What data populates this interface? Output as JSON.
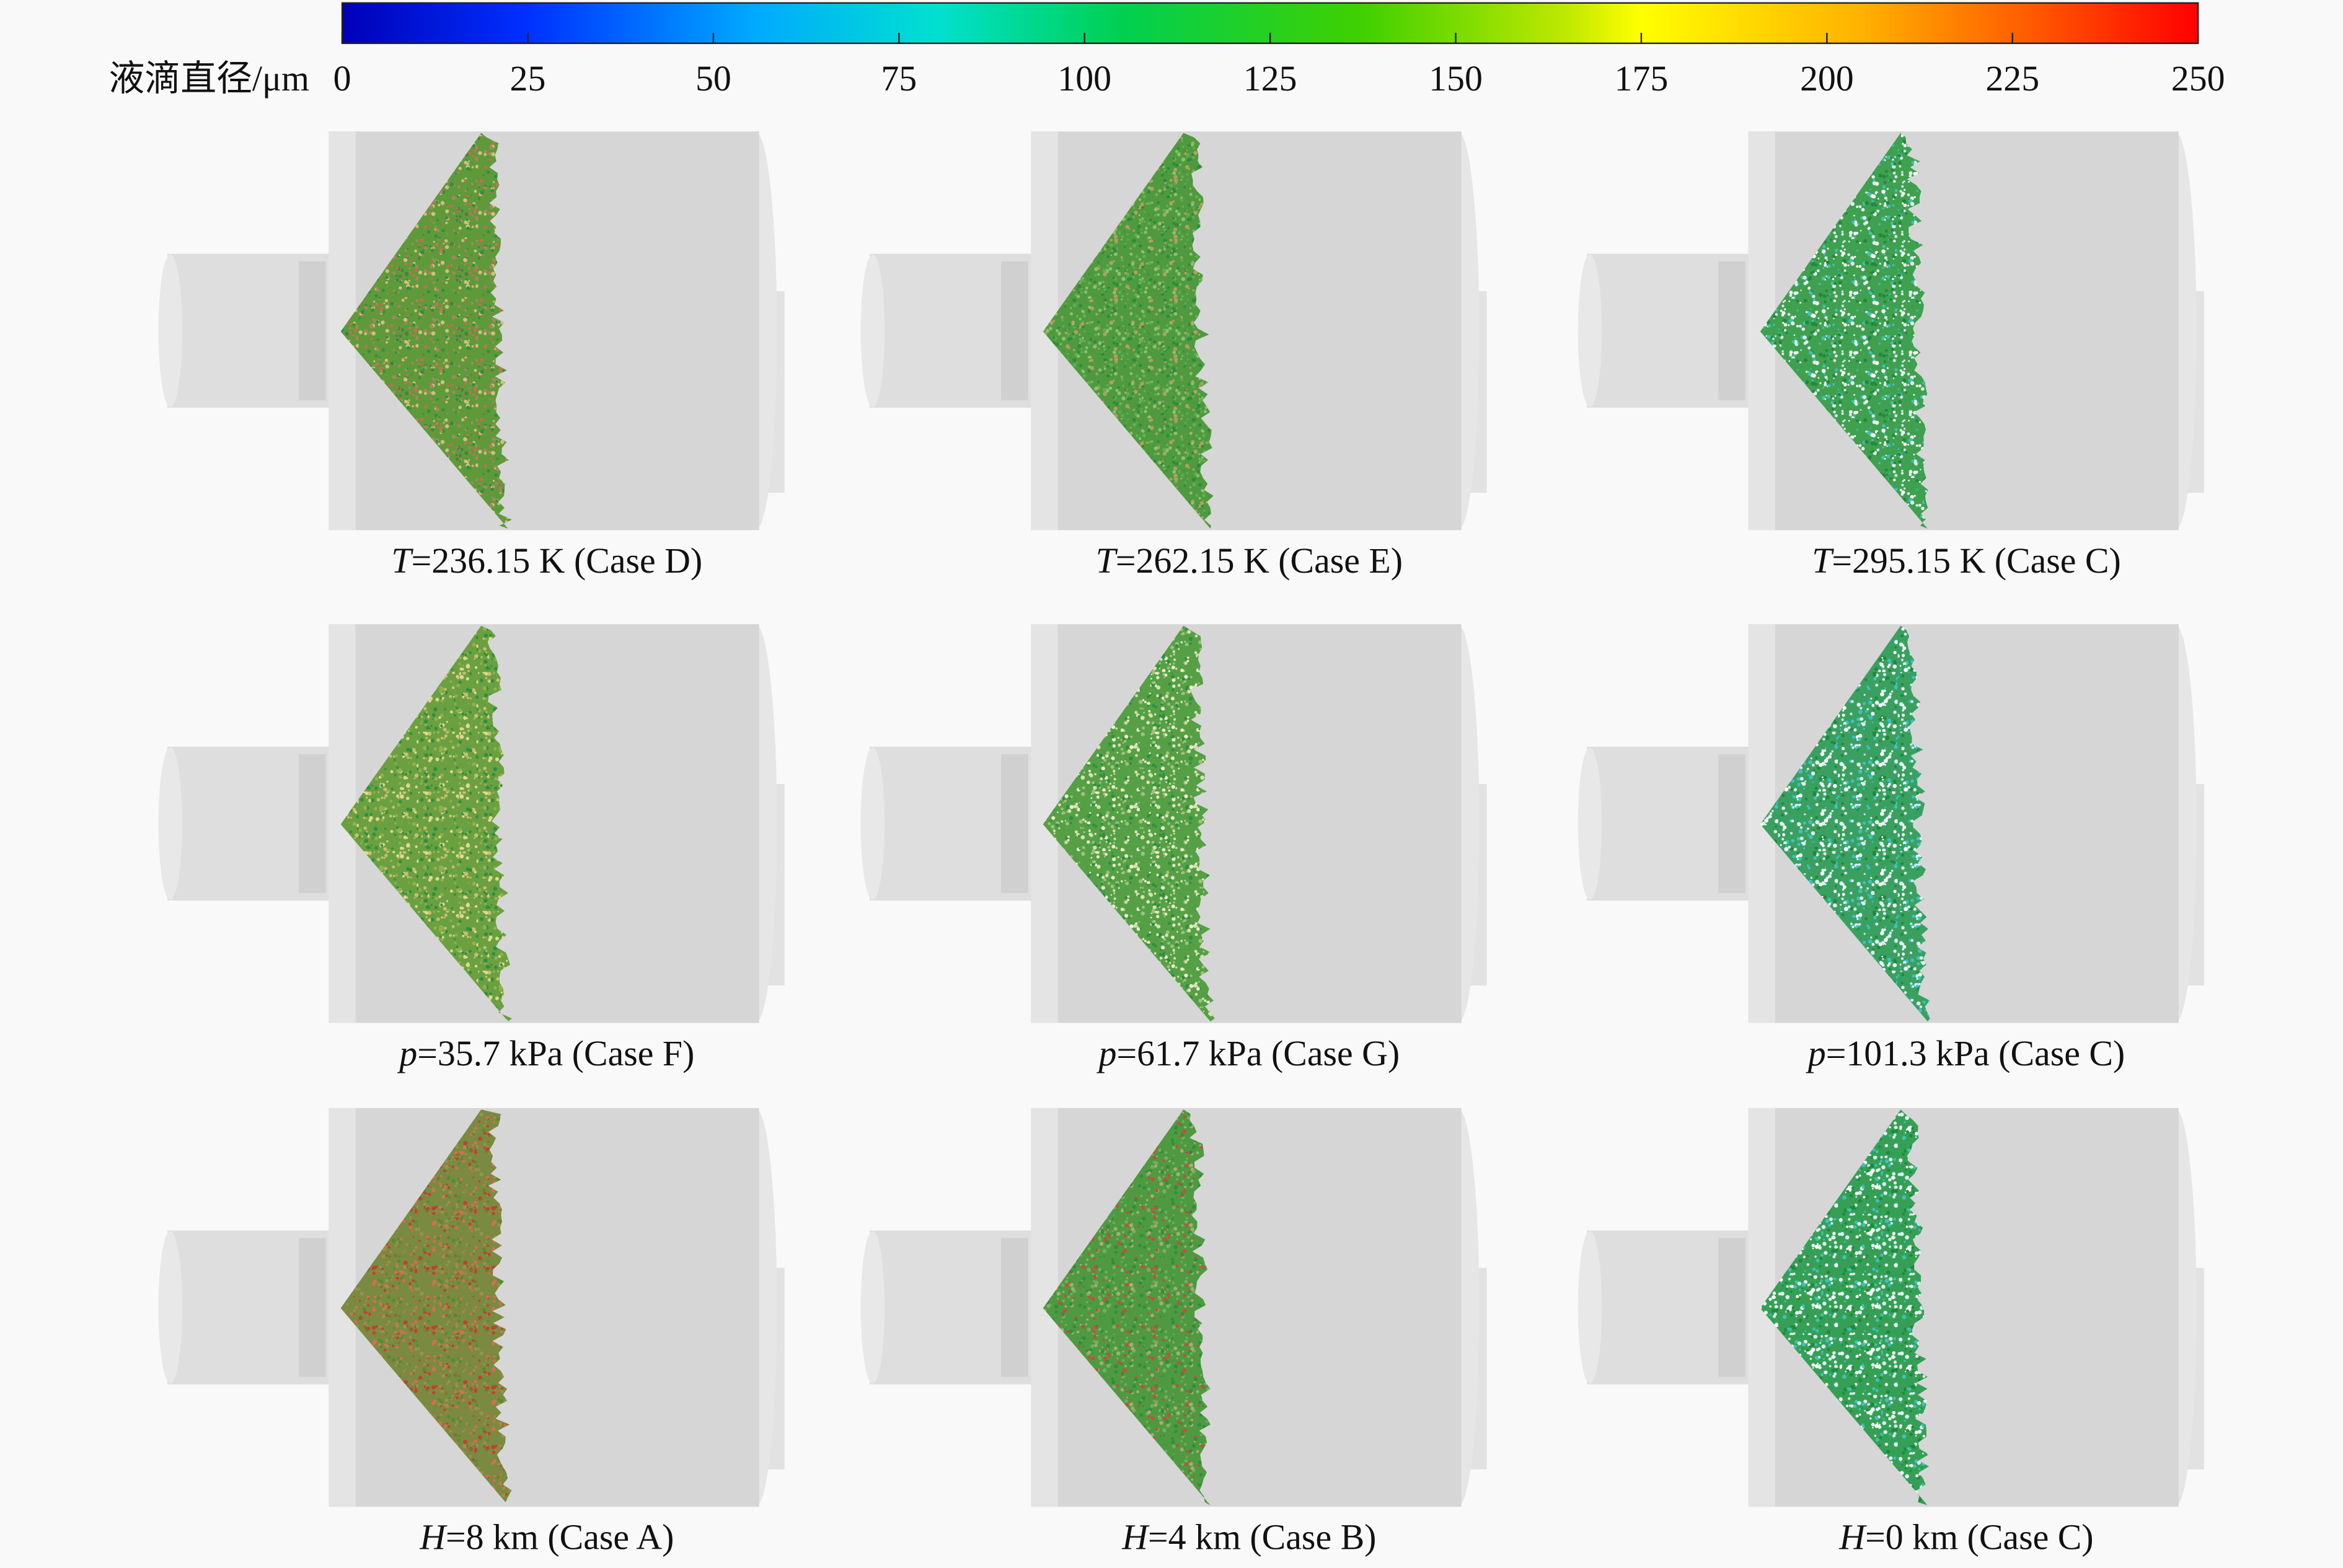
{
  "colorbar": {
    "label": "液滴直径/μm",
    "range": [
      0,
      250
    ],
    "ticks": [
      0,
      25,
      50,
      75,
      100,
      125,
      150,
      175,
      200,
      225,
      250
    ]
  },
  "panels": [
    {
      "variable": "T",
      "caption": "=236.15 K (Case D)"
    },
    {
      "variable": "T",
      "caption": "=262.15 K (Case E)"
    },
    {
      "variable": "T",
      "caption": "=295.15 K (Case C)"
    },
    {
      "variable": "p",
      "caption": "=35.7 kPa (Case F)"
    },
    {
      "variable": "p",
      "caption": "=61.7 kPa (Case G)"
    },
    {
      "variable": "p",
      "caption": "=101.3 kPa (Case C)"
    },
    {
      "variable": "H",
      "caption": "=8 km (Case A)"
    },
    {
      "variable": "H",
      "caption": "=4 km (Case B)"
    },
    {
      "variable": "H",
      "caption": "=0 km (Case C)"
    }
  ]
}
